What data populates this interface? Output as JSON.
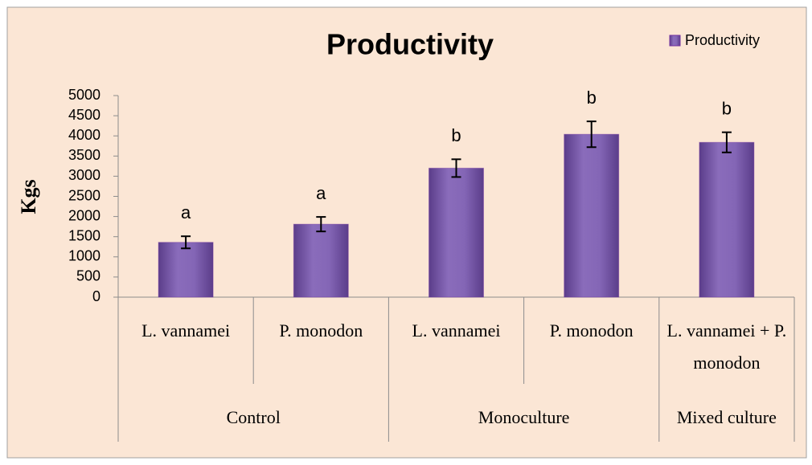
{
  "chart_data": {
    "type": "bar",
    "title": "Productivity",
    "y_label": "Kgs",
    "categories": [
      "L. vannamei",
      "P. monodon",
      "L. vannamei",
      "P. monodon",
      "L. vannamei + P. monodon"
    ],
    "groups": [
      {
        "name": "Control",
        "span": 2
      },
      {
        "name": "Monoculture",
        "span": 2
      },
      {
        "name": "Mixed culture",
        "span": 1
      }
    ],
    "series": [
      {
        "name": "Productivity",
        "color": "#7030a0",
        "values": [
          1360,
          1810,
          3200,
          4040,
          3840
        ],
        "errors": [
          150,
          180,
          220,
          320,
          250
        ],
        "annotations": [
          "a",
          "a",
          "b",
          "b",
          "b"
        ]
      }
    ],
    "ylim": [
      0,
      5000
    ],
    "yticks": [
      0,
      500,
      1000,
      1500,
      2000,
      2500,
      3000,
      3500,
      4000,
      4500,
      5000
    ],
    "legend": "top-right"
  }
}
